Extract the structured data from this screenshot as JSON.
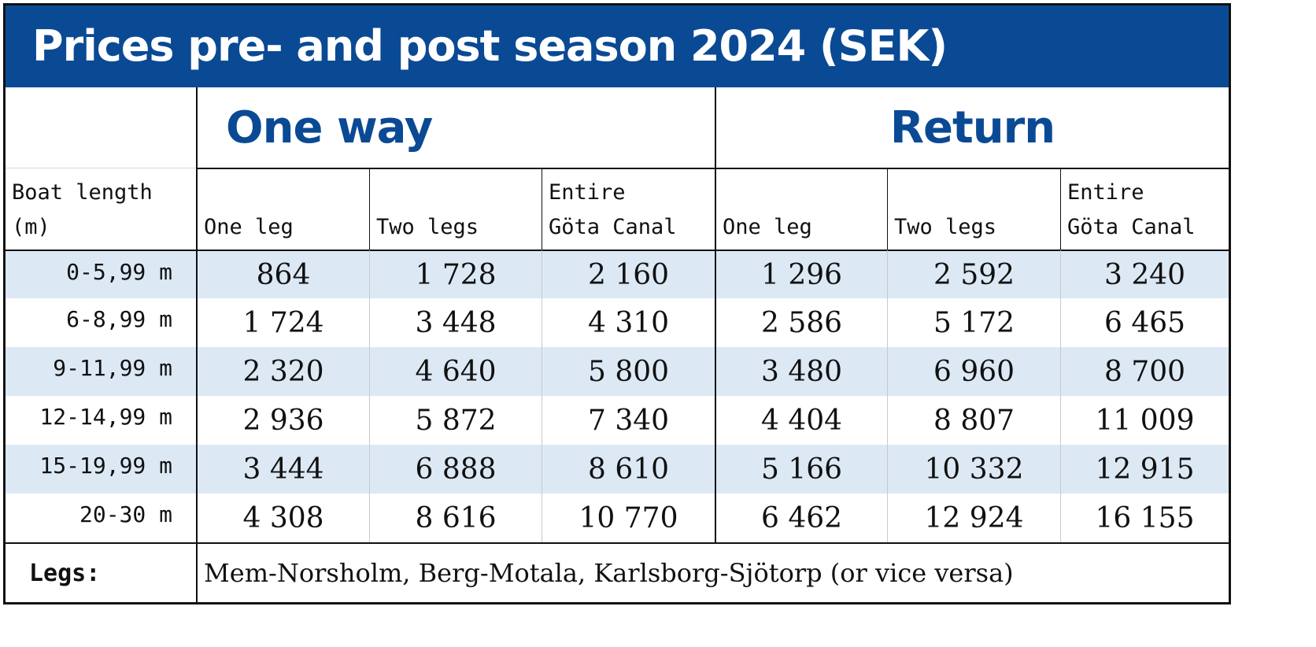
{
  "title": "Prices pre- and post season 2024 (SEK)",
  "groups": {
    "one_way": "One way",
    "return": "Return"
  },
  "header": {
    "boat_length_line1": "Boat length",
    "boat_length_line2": "(m)",
    "one_way_cols": [
      {
        "line1": "",
        "line2": "One leg"
      },
      {
        "line1": "",
        "line2": "Two legs"
      },
      {
        "line1": "Entire",
        "line2": "Göta Canal"
      }
    ],
    "return_cols": [
      {
        "line1": "",
        "line2": "One leg"
      },
      {
        "line1": "",
        "line2": "Two legs"
      },
      {
        "line1": "Entire",
        "line2": "Göta Canal"
      }
    ]
  },
  "rows": [
    {
      "length": "0-5,99 m",
      "values": [
        "864",
        "1 728",
        "2 160",
        "1 296",
        "2 592",
        "3 240"
      ]
    },
    {
      "length": "6-8,99 m",
      "values": [
        "1 724",
        "3 448",
        "4 310",
        "2 586",
        "5 172",
        "6 465"
      ]
    },
    {
      "length": "9-11,99 m",
      "values": [
        "2 320",
        "4 640",
        "5 800",
        "3 480",
        "6 960",
        "8 700"
      ]
    },
    {
      "length": "12-14,99 m",
      "values": [
        "2 936",
        "5 872",
        "7 340",
        "4 404",
        "8 807",
        "11 009"
      ]
    },
    {
      "length": "15-19,99 m",
      "values": [
        "3 444",
        "6 888",
        "8 610",
        "5 166",
        "10 332",
        "12 915"
      ]
    },
    {
      "length": "20-30 m",
      "values": [
        "4 308",
        "8 616",
        "10 770",
        "6 462",
        "12 924",
        "16 155"
      ]
    }
  ],
  "legs": {
    "label": "Legs:",
    "text": "Mem-Norsholm, Berg-Motala, Karlsborg-Sjötorp (or vice versa)"
  },
  "colors": {
    "brand_blue": "#0a4a94",
    "row_shade": "#dce9f5"
  }
}
